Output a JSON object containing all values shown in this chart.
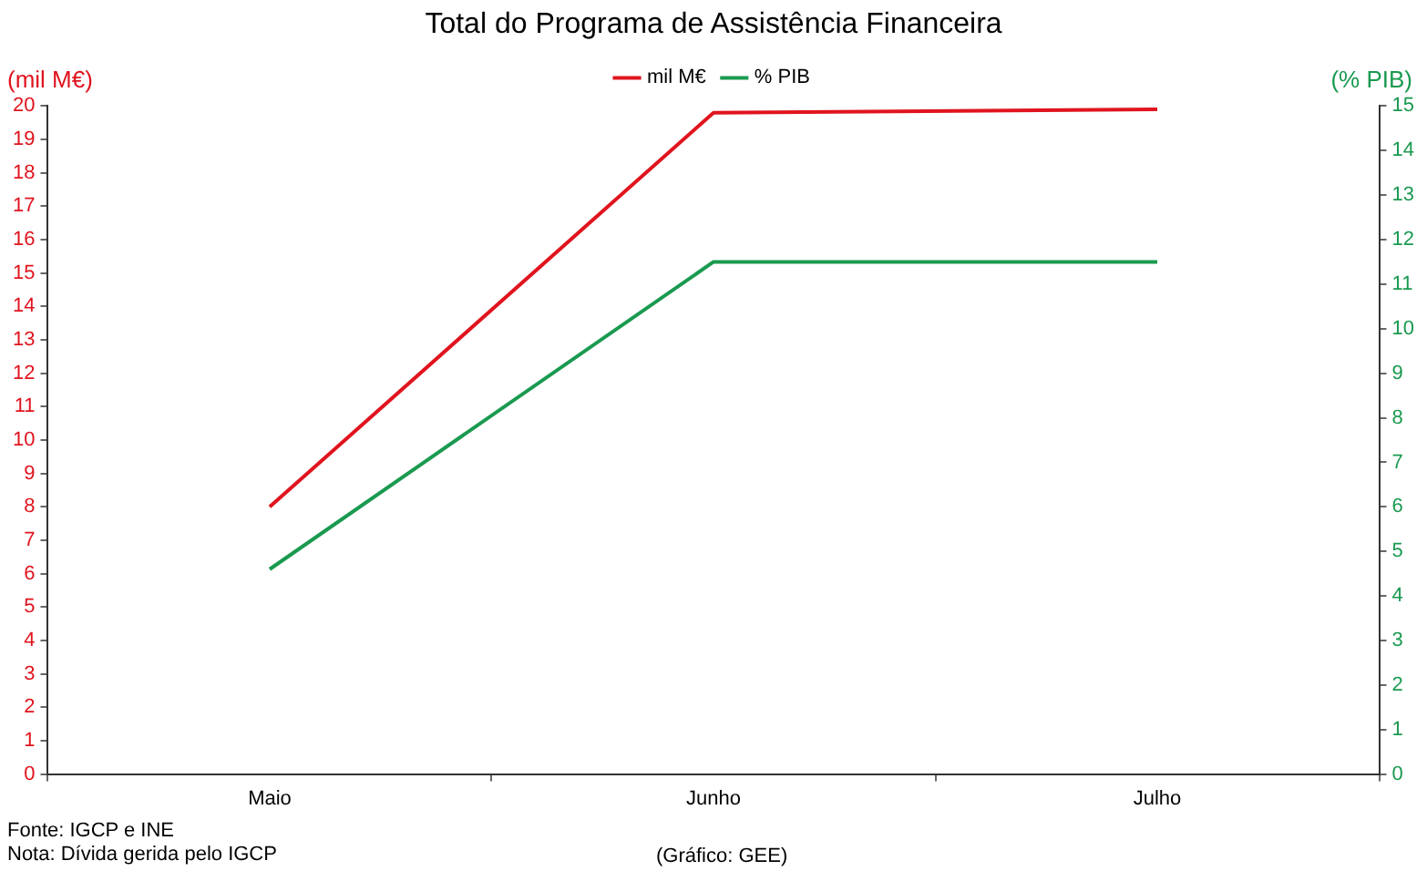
{
  "chart_data": {
    "type": "line",
    "title": "Total do Programa de Assistência Financeira",
    "ylabel": "(mil M€)",
    "y2label": "(% PIB)",
    "categories": [
      "Maio",
      "Junho",
      "Julho"
    ],
    "series": [
      {
        "name": "mil M€",
        "color": "#e0141e",
        "values": [
          8.0,
          19.8,
          19.9
        ]
      },
      {
        "name": "% PIB",
        "color": "#1a9a50",
        "values": [
          4.6,
          11.5,
          11.5
        ],
        "axis": "y2"
      }
    ],
    "ylim": [
      0,
      20
    ],
    "yticks": [
      0,
      1,
      2,
      3,
      4,
      5,
      6,
      7,
      8,
      9,
      10,
      11,
      12,
      13,
      14,
      15,
      16,
      17,
      18,
      19,
      20
    ],
    "y2lim": [
      0,
      15
    ],
    "y2ticks": [
      0,
      1,
      2,
      3,
      4,
      5,
      6,
      7,
      8,
      9,
      10,
      11,
      12,
      13,
      14,
      15
    ],
    "grid": false,
    "legend": "top",
    "marker": "none",
    "line_style": "solid",
    "annotations": [
      "Fonte: IGCP e INE",
      "Nota: Dívida gerida pelo IGCP",
      "(Gráfico: GEE)"
    ]
  }
}
